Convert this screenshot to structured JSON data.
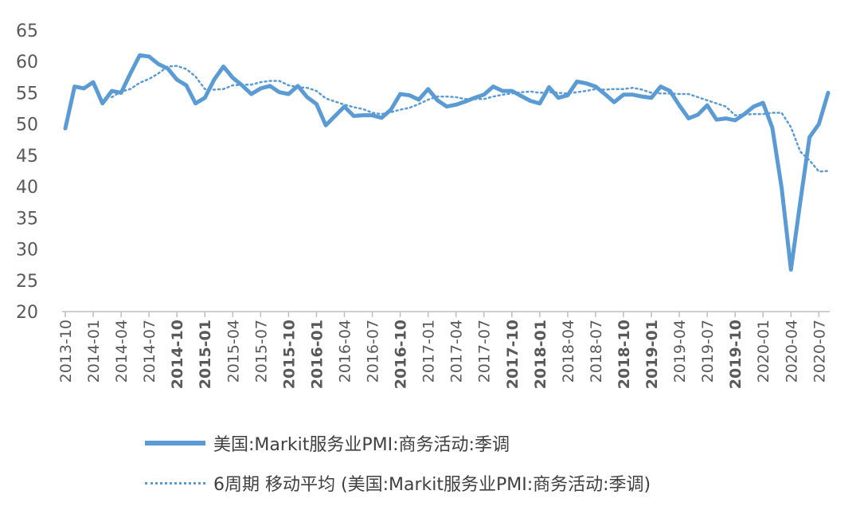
{
  "chart_data": {
    "type": "line",
    "x": [
      "2013-10",
      "2013-11",
      "2013-12",
      "2014-01",
      "2014-02",
      "2014-03",
      "2014-04",
      "2014-05",
      "2014-06",
      "2014-07",
      "2014-08",
      "2014-09",
      "2014-10",
      "2014-11",
      "2014-12",
      "2015-01",
      "2015-02",
      "2015-03",
      "2015-04",
      "2015-05",
      "2015-06",
      "2015-07",
      "2015-08",
      "2015-09",
      "2015-10",
      "2015-11",
      "2015-12",
      "2016-01",
      "2016-02",
      "2016-03",
      "2016-04",
      "2016-05",
      "2016-06",
      "2016-07",
      "2016-08",
      "2016-09",
      "2016-10",
      "2016-11",
      "2016-12",
      "2017-01",
      "2017-02",
      "2017-03",
      "2017-04",
      "2017-05",
      "2017-06",
      "2017-07",
      "2017-08",
      "2017-09",
      "2017-10",
      "2017-11",
      "2017-12",
      "2018-01",
      "2018-02",
      "2018-03",
      "2018-04",
      "2018-05",
      "2018-06",
      "2018-07",
      "2018-08",
      "2018-09",
      "2018-10",
      "2018-11",
      "2018-12",
      "2019-01",
      "2019-02",
      "2019-03",
      "2019-04",
      "2019-05",
      "2019-06",
      "2019-07",
      "2019-08",
      "2019-09",
      "2019-10",
      "2019-11",
      "2019-12",
      "2020-01",
      "2020-02",
      "2020-03",
      "2020-04",
      "2020-05",
      "2020-06",
      "2020-07",
      "2020-08"
    ],
    "xticks": [
      "2013-10",
      "2014-01",
      "2014-04",
      "2014-07",
      "2014-10",
      "2015-01",
      "2015-04",
      "2015-07",
      "2015-10",
      "2016-01",
      "2016-04",
      "2016-07",
      "2016-10",
      "2017-01",
      "2017-04",
      "2017-07",
      "2017-10",
      "2018-01",
      "2018-04",
      "2018-07",
      "2018-10",
      "2019-01",
      "2019-04",
      "2019-07",
      "2019-10",
      "2020-01",
      "2020-04",
      "2020-07"
    ],
    "bold_ticks": [
      "2014-10",
      "2015-01",
      "2015-10",
      "2016-01",
      "2016-10",
      "2017-10",
      "2018-01",
      "2018-10",
      "2019-01",
      "2019-10"
    ],
    "yticks": [
      20,
      25,
      30,
      35,
      40,
      45,
      50,
      55,
      60,
      65
    ],
    "ylim": [
      20,
      65
    ],
    "series": [
      {
        "name": "美国:Markit服务业PMI:商务活动:季调",
        "style": "solid",
        "values": [
          49.3,
          56.0,
          55.7,
          56.7,
          53.3,
          55.3,
          55.0,
          58.1,
          61.0,
          60.8,
          59.6,
          58.9,
          57.1,
          56.2,
          53.3,
          54.2,
          57.1,
          59.2,
          57.4,
          56.2,
          54.8,
          55.7,
          56.1,
          55.1,
          54.8,
          56.1,
          54.3,
          53.2,
          49.8,
          51.3,
          52.8,
          51.3,
          51.4,
          51.4,
          51.0,
          52.3,
          54.8,
          54.6,
          53.9,
          55.6,
          53.8,
          52.8,
          53.1,
          53.6,
          54.2,
          54.7,
          56.0,
          55.3,
          55.3,
          54.5,
          53.7,
          53.3,
          55.9,
          54.2,
          54.6,
          56.8,
          56.5,
          56.0,
          54.8,
          53.5,
          54.7,
          54.7,
          54.4,
          54.2,
          56.0,
          55.3,
          53.0,
          50.9,
          51.5,
          53.0,
          50.7,
          50.9,
          50.6,
          51.6,
          52.8,
          53.4,
          49.4,
          39.8,
          26.7,
          37.5,
          47.9,
          50.0,
          55.0
        ]
      },
      {
        "name": "6周期 移动平均 (美国:Markit服务业PMI:商务活动:季调)",
        "style": "dotted",
        "values": [
          null,
          null,
          null,
          null,
          null,
          54.3,
          55.2,
          55.6,
          56.6,
          57.2,
          58.1,
          59.2,
          59.3,
          58.8,
          57.6,
          55.6,
          55.5,
          55.6,
          56.2,
          56.3,
          56.3,
          56.7,
          56.9,
          56.9,
          56.2,
          55.9,
          55.8,
          55.3,
          54.1,
          53.6,
          53.1,
          52.7,
          52.4,
          51.8,
          51.6,
          51.9,
          52.3,
          52.6,
          53.2,
          53.9,
          54.4,
          54.4,
          54.3,
          54.0,
          54.0,
          54.0,
          54.4,
          54.7,
          54.9,
          55.1,
          55.2,
          55.0,
          55.1,
          55.0,
          54.9,
          55.1,
          55.3,
          55.6,
          55.5,
          55.6,
          55.6,
          55.8,
          55.5,
          55.0,
          54.9,
          54.9,
          54.8,
          54.8,
          54.3,
          53.8,
          53.3,
          52.8,
          51.4,
          51.5,
          51.6,
          51.6,
          51.8,
          51.8,
          49.5,
          45.6,
          44.2,
          42.4,
          42.5
        ]
      }
    ]
  },
  "legend": {
    "items": [
      {
        "label": "美国:Markit服务业PMI:商务活动:季调",
        "style": "solid"
      },
      {
        "label": "6周期 移动平均 (美国:Markit服务业PMI:商务活动:季调)",
        "style": "dotted"
      }
    ]
  },
  "colors": {
    "line": "#5b9bd5",
    "axis": "#bfbfbf",
    "text": "#595959",
    "legend_text": "#404040"
  }
}
